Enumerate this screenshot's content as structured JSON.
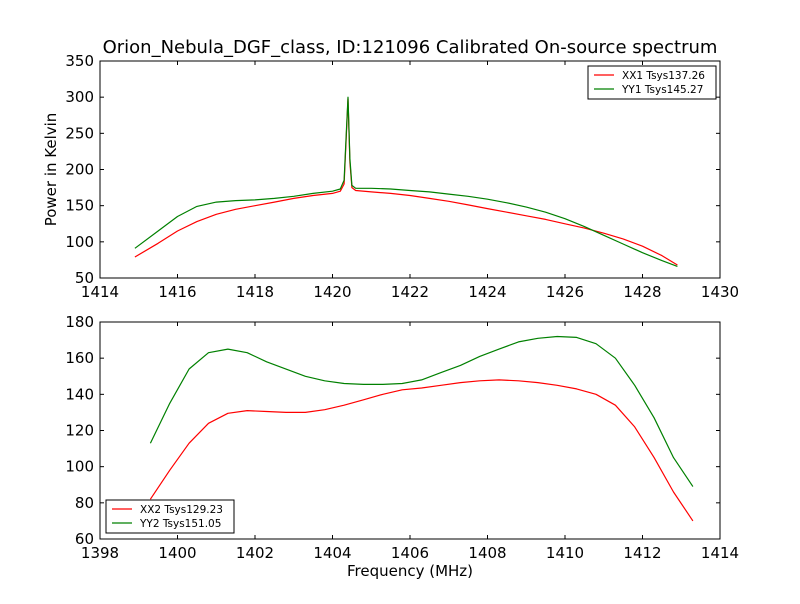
{
  "title": "Orion_Nebula_DGF_class, ID:121096 Calibrated On-source spectrum",
  "chart_data": [
    {
      "type": "line",
      "ylabel": "Power in Kelvin",
      "xlabel": "",
      "xlim": [
        1414,
        1430
      ],
      "ylim": [
        50,
        350
      ],
      "xticks": [
        1414,
        1416,
        1418,
        1420,
        1422,
        1424,
        1426,
        1428,
        1430
      ],
      "yticks": [
        50,
        100,
        150,
        200,
        250,
        300,
        350
      ],
      "legend_position": "top-right",
      "series": [
        {
          "name": "XX1 Tsys137.26",
          "color": "#ff0000",
          "x": [
            1414.9,
            1415.5,
            1416,
            1416.5,
            1417,
            1417.5,
            1418,
            1418.5,
            1419,
            1419.5,
            1420,
            1420.2,
            1420.3,
            1420.35,
            1420.4,
            1420.45,
            1420.5,
            1420.6,
            1421,
            1421.5,
            1422,
            1422.5,
            1423,
            1423.5,
            1424,
            1424.5,
            1425,
            1425.5,
            1426,
            1426.5,
            1427,
            1427.5,
            1428,
            1428.5,
            1428.9
          ],
          "y": [
            79,
            98,
            115,
            128,
            138,
            145,
            150,
            155,
            160,
            164,
            167,
            170,
            180,
            240,
            298,
            210,
            175,
            171,
            169,
            167,
            164,
            160,
            156,
            151,
            146,
            141,
            136,
            131,
            125,
            119,
            112,
            104,
            94,
            81,
            68
          ]
        },
        {
          "name": "YY1 Tsys145.27",
          "color": "#008000",
          "x": [
            1414.9,
            1415.5,
            1416,
            1416.5,
            1417,
            1417.5,
            1418,
            1418.5,
            1419,
            1419.5,
            1420,
            1420.2,
            1420.3,
            1420.35,
            1420.4,
            1420.45,
            1420.5,
            1420.6,
            1421,
            1421.5,
            1422,
            1422.5,
            1423,
            1423.5,
            1424,
            1424.5,
            1425,
            1425.5,
            1426,
            1426.5,
            1427,
            1427.5,
            1428,
            1428.5,
            1428.9
          ],
          "y": [
            91,
            115,
            135,
            149,
            155,
            157,
            158,
            160,
            163,
            167,
            170,
            173,
            185,
            245,
            300,
            215,
            178,
            174,
            174,
            173,
            171,
            169,
            166,
            163,
            159,
            154,
            148,
            141,
            132,
            121,
            109,
            97,
            85,
            74,
            66
          ]
        }
      ]
    },
    {
      "type": "line",
      "ylabel": "",
      "xlabel": "Frequency (MHz)",
      "xlim": [
        1398,
        1414
      ],
      "ylim": [
        60,
        180
      ],
      "xticks": [
        1398,
        1400,
        1402,
        1404,
        1406,
        1408,
        1410,
        1412,
        1414
      ],
      "yticks": [
        60,
        80,
        100,
        120,
        140,
        160,
        180
      ],
      "legend_position": "bottom-left",
      "series": [
        {
          "name": "XX2 Tsys129.23",
          "color": "#ff0000",
          "x": [
            1399.3,
            1399.8,
            1400.3,
            1400.8,
            1401.3,
            1401.8,
            1402.3,
            1402.8,
            1403.3,
            1403.8,
            1404.3,
            1404.8,
            1405.3,
            1405.8,
            1406.3,
            1406.8,
            1407.3,
            1407.8,
            1408.3,
            1408.8,
            1409.3,
            1409.8,
            1410.3,
            1410.8,
            1411.3,
            1411.8,
            1412.3,
            1412.8,
            1413.3
          ],
          "y": [
            82,
            98,
            113,
            124,
            129.5,
            131,
            130.5,
            130,
            130,
            131.5,
            134,
            137,
            140,
            142.5,
            143.5,
            145,
            146.5,
            147.5,
            148,
            147.5,
            146.5,
            145,
            143,
            140,
            134,
            122,
            105,
            86,
            70
          ]
        },
        {
          "name": "YY2 Tsys151.05",
          "color": "#008000",
          "x": [
            1399.3,
            1399.8,
            1400.3,
            1400.8,
            1401.3,
            1401.8,
            1402.3,
            1402.8,
            1403.3,
            1403.8,
            1404.3,
            1404.8,
            1405.3,
            1405.8,
            1406.3,
            1406.8,
            1407.3,
            1407.8,
            1408.3,
            1408.8,
            1409.3,
            1409.8,
            1410.3,
            1410.8,
            1411.3,
            1411.8,
            1412.3,
            1412.8,
            1413.3
          ],
          "y": [
            113,
            135,
            154,
            163,
            165,
            163,
            158,
            154,
            150,
            147.5,
            146,
            145.5,
            145.5,
            146,
            148,
            152,
            156,
            161,
            165,
            169,
            171,
            172,
            171.5,
            168,
            160,
            145,
            127,
            105,
            89
          ]
        }
      ]
    }
  ]
}
